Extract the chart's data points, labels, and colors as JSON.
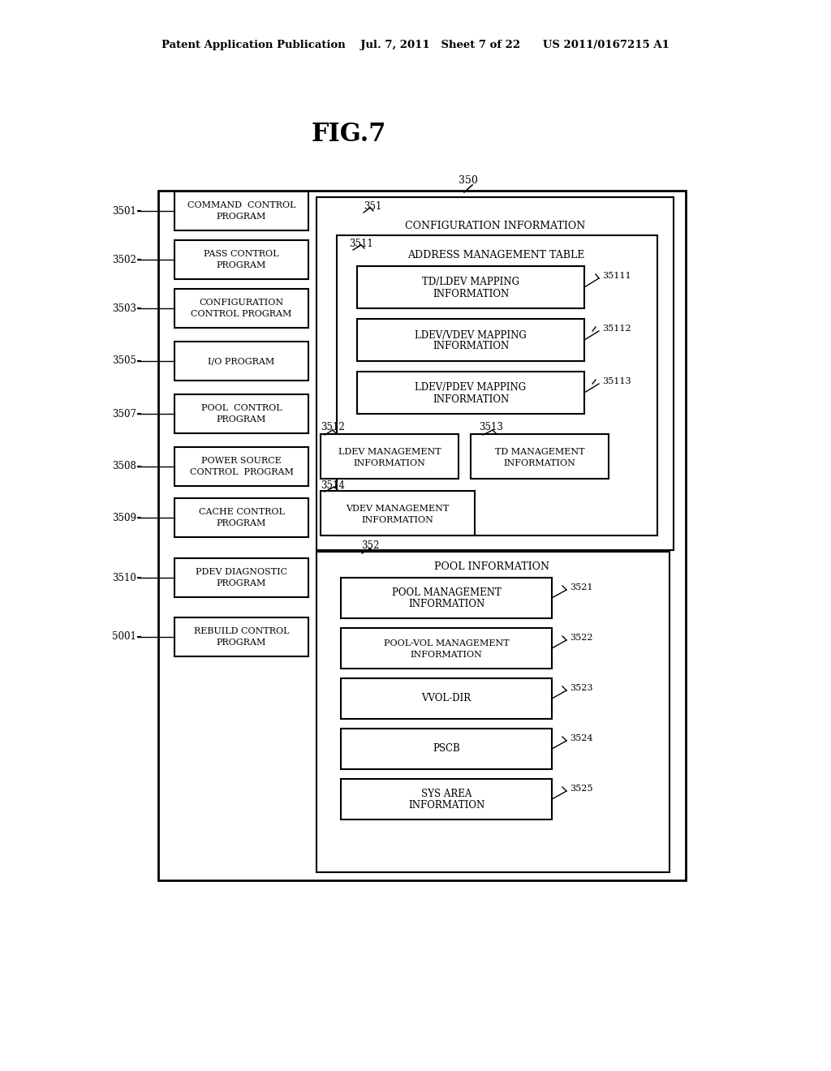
{
  "bg_color": "#ffffff",
  "title": "FIG.7",
  "header_text": "Patent Application Publication    Jul. 7, 2011   Sheet 7 of 22      US 2011/0167215 A1",
  "fig_title": "FIG.7",
  "label_350": "350",
  "label_351": "351",
  "label_352": "352",
  "label_3501": "3501",
  "label_3502": "3502",
  "label_3503": "3503",
  "label_3505": "3505",
  "label_3507": "3507",
  "label_3508": "3508",
  "label_3509": "3509",
  "label_3510": "3510",
  "label_5001": "5001",
  "label_3511": "3511",
  "label_3512": "3512",
  "label_3513": "3513",
  "label_3514": "3514",
  "label_35111": "35111",
  "label_35112": "35112",
  "label_35113": "35113",
  "label_3521": "3521",
  "label_3522": "3522",
  "label_3523": "3523",
  "label_3524": "3524",
  "label_3525": "3525"
}
